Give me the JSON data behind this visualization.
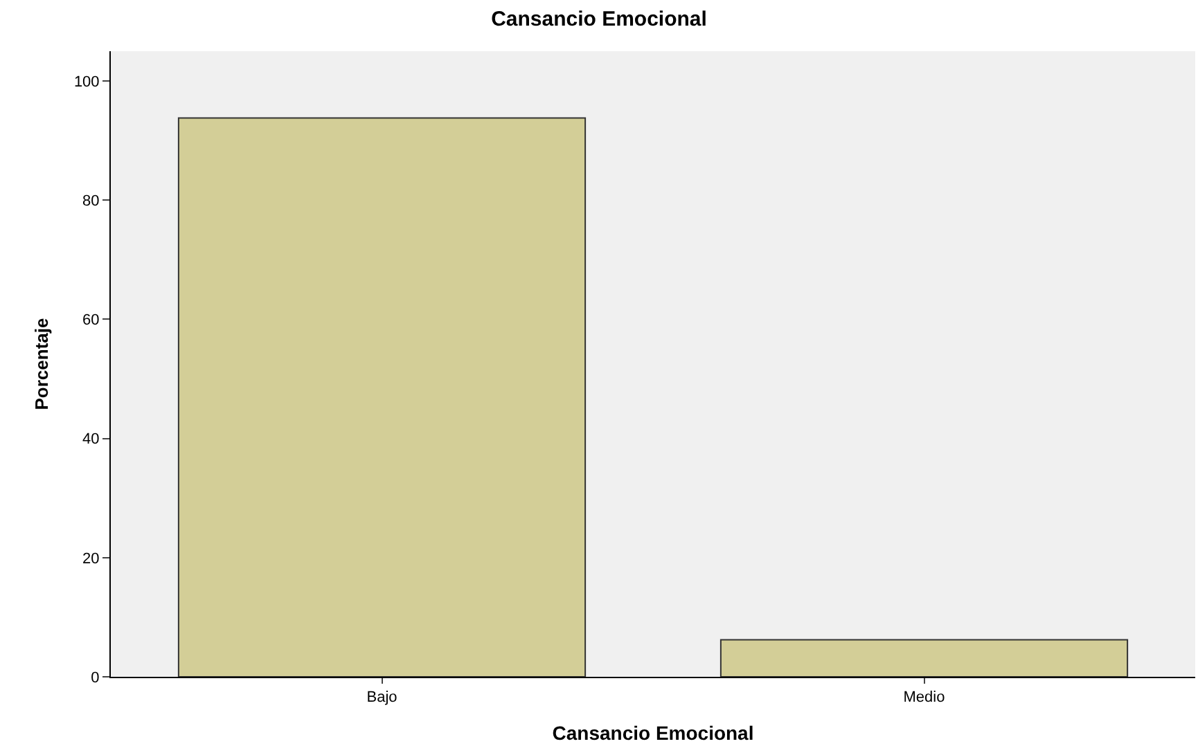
{
  "chart_data": {
    "type": "bar",
    "title": "Cansancio Emocional",
    "xlabel": "Cansancio Emocional",
    "ylabel": "Porcentaje",
    "categories": [
      "Bajo",
      "Medio"
    ],
    "values": [
      93.8,
      6.2
    ],
    "color": "#d3ce97",
    "ylim": [
      0,
      105
    ],
    "yticks": [
      0,
      20,
      40,
      60,
      80,
      100
    ],
    "grid": false,
    "legend": false
  }
}
